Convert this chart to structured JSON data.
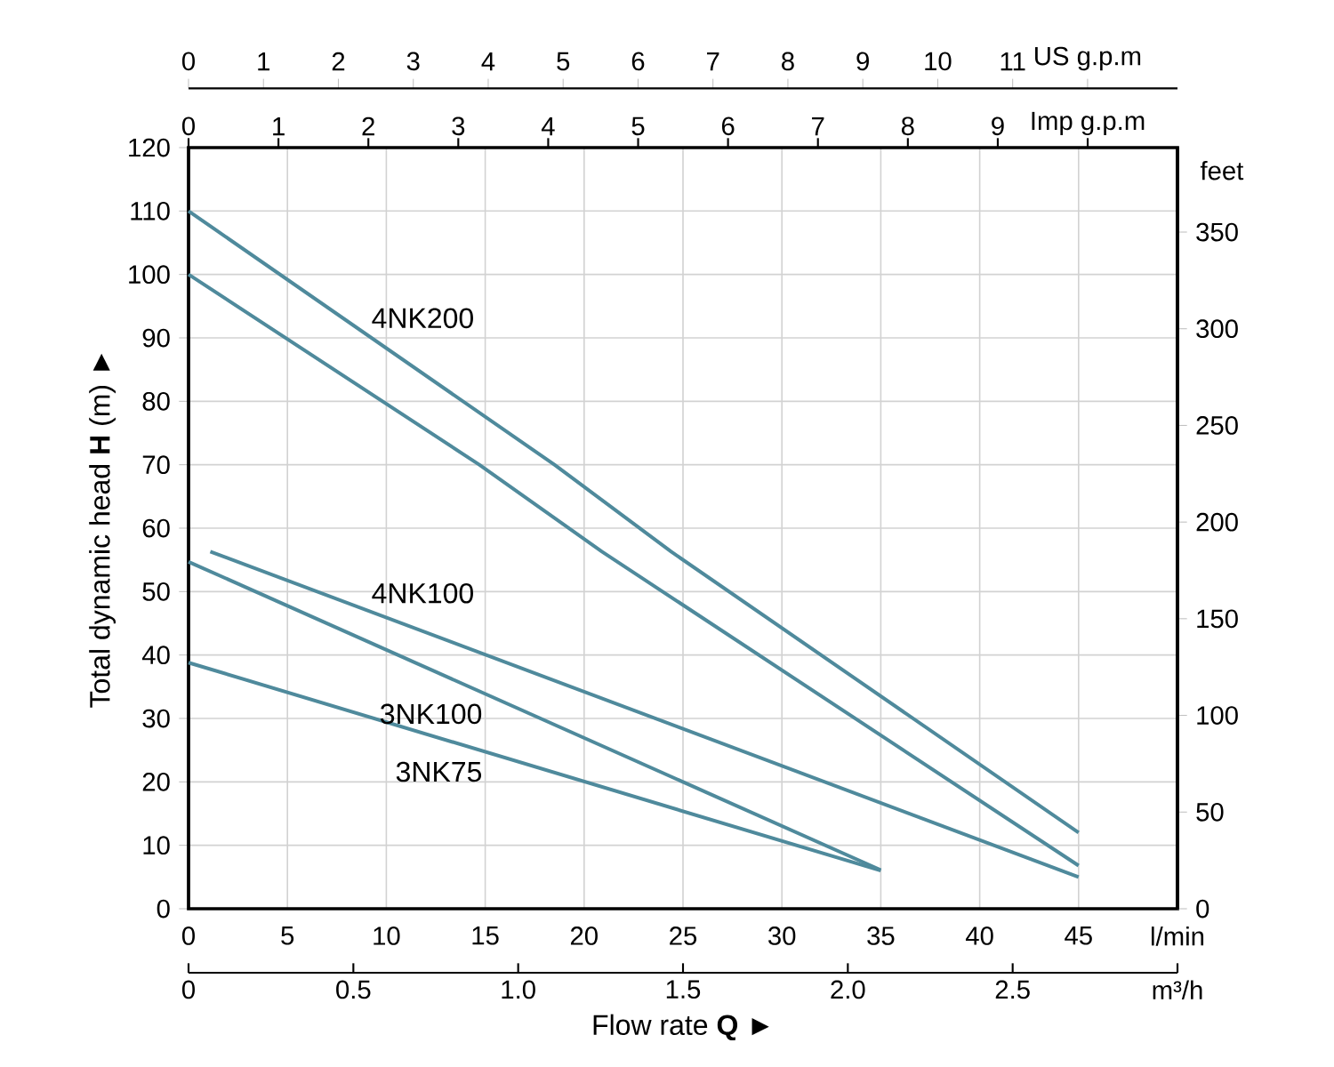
{
  "chart_data": {
    "type": "line",
    "xlabel": "Flow rate **Q** ►",
    "ylabel": "Total dynamic head **H** (m) ►",
    "y2label": "feet",
    "xlim": [
      0,
      50
    ],
    "xticks": [
      0,
      5,
      10,
      15,
      20,
      25,
      30,
      35,
      40,
      45,
      {
        "value": 50,
        "label": "l/min"
      }
    ],
    "ylim": [
      0,
      120
    ],
    "yticks": [
      0,
      10,
      20,
      30,
      40,
      50,
      60,
      70,
      80,
      90,
      100,
      110,
      120
    ],
    "y2lim": [
      0,
      393.7
    ],
    "y2ticks": [
      0,
      50,
      100,
      150,
      200,
      250,
      300,
      350
    ],
    "x2lim": [
      0,
      13.2
    ],
    "x2ticks": [
      0,
      1,
      2,
      3,
      4,
      5,
      6,
      7,
      8,
      9,
      10,
      11,
      {
        "value": 12,
        "label": "US g.p.m"
      }
    ],
    "annotations": [
      "0",
      "1",
      "2",
      "3",
      "4",
      "5",
      "6",
      "7",
      "8",
      "9",
      "Imp g.p.m",
      "0",
      "0.5",
      "1.0",
      "1.5",
      "2.0",
      "2.5",
      "m³/h"
    ],
    "grid": true,
    "series": [
      {
        "name": "4NK200",
        "color": "#4f8a9c",
        "x": [
          0,
          18.5,
          24.4,
          45
        ],
        "values": [
          110,
          70,
          56.3,
          12
        ]
      },
      {
        "color": "#4f8a9c",
        "x": [
          0,
          14.7,
          20.9,
          45
        ],
        "values": [
          100,
          70,
          56.3,
          6.8
        ]
      },
      {
        "name": "4NK100",
        "color": "#4f8a9c",
        "x": [
          1.1,
          45
        ],
        "values": [
          56.3,
          5
        ]
      },
      {
        "name": "3NK100",
        "color": "#4f8a9c",
        "x": [
          0,
          35
        ],
        "values": [
          54.7,
          6.1
        ]
      },
      {
        "name": "3NK75",
        "color": "#4f8a9c",
        "x": [
          0,
          35
        ],
        "values": [
          38.8,
          6
        ]
      }
    ]
  }
}
